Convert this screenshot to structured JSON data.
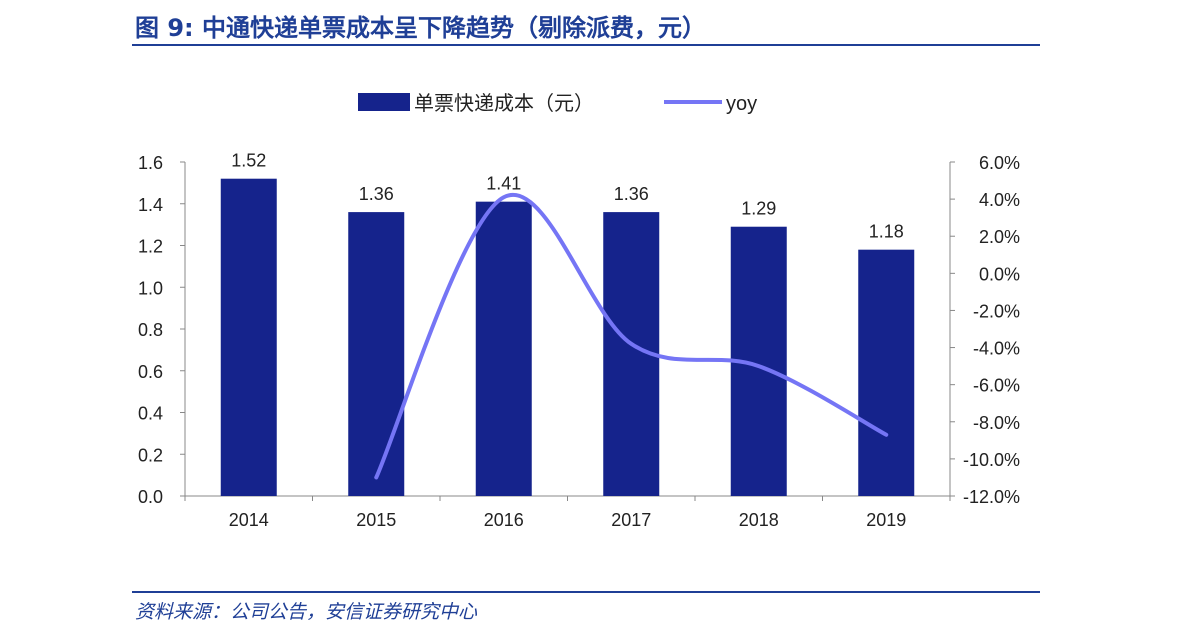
{
  "title": "图 9:   中通快递单票成本呈下降趋势（剔除派费，元）",
  "source": "资料来源：公司公告，安信证券研究中心",
  "colors": {
    "bar": "#15238c",
    "line": "#7575f5",
    "title": "#1f3f96"
  },
  "chart_data": {
    "type": "bar",
    "categories": [
      "2014",
      "2015",
      "2016",
      "2017",
      "2018",
      "2019"
    ],
    "series": [
      {
        "name": "单票快递成本（元）",
        "type": "bar",
        "axis": "left",
        "values": [
          1.52,
          1.36,
          1.41,
          1.36,
          1.29,
          1.18
        ],
        "labels": [
          "1.52",
          "1.36",
          "1.41",
          "1.36",
          "1.29",
          "1.18"
        ]
      },
      {
        "name": "yoy",
        "type": "line",
        "axis": "right",
        "values": [
          null,
          -11.0,
          4.1,
          -3.8,
          -5.0,
          -8.7
        ]
      }
    ],
    "y_left": {
      "ylim": [
        0,
        1.6
      ],
      "ticks": [
        "0.0",
        "0.2",
        "0.4",
        "0.6",
        "0.8",
        "1.0",
        "1.2",
        "1.4",
        "1.6"
      ]
    },
    "y_right": {
      "ylim": [
        -12,
        6
      ],
      "unit": "%",
      "ticks": [
        "-12.0%",
        "-10.0%",
        "-8.0%",
        "-6.0%",
        "-4.0%",
        "-2.0%",
        "0.0%",
        "2.0%",
        "4.0%",
        "6.0%"
      ]
    },
    "legend": "top",
    "grid": false
  }
}
